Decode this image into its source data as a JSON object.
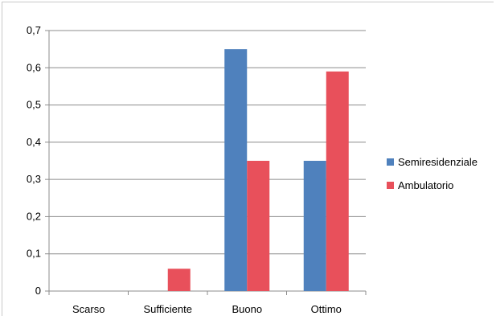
{
  "chart_data": {
    "type": "bar",
    "categories": [
      "Scarso",
      "Sufficiente",
      "Buono",
      "Ottimo"
    ],
    "series": [
      {
        "name": "Semiresidenziale",
        "color": "#4f81bd",
        "values": [
          0,
          0,
          0.65,
          0.35
        ]
      },
      {
        "name": "Ambulatorio",
        "color": "#e8505b",
        "values": [
          0,
          0.06,
          0.35,
          0.59
        ]
      }
    ],
    "ylim": [
      0,
      0.7
    ],
    "yticks": [
      "0",
      "0,1",
      "0,2",
      "0,3",
      "0,4",
      "0,5",
      "0,6",
      "0,7"
    ],
    "grid": true,
    "legend": "right"
  }
}
